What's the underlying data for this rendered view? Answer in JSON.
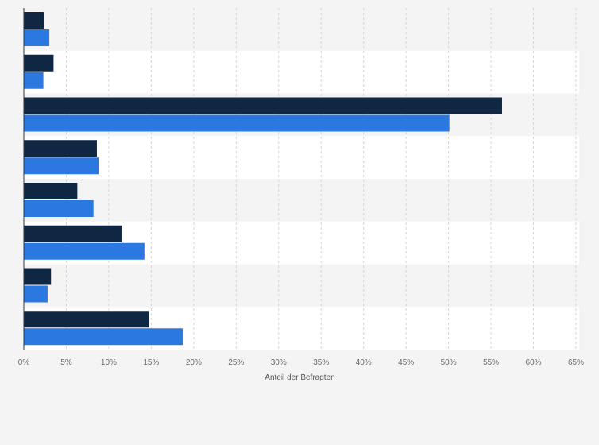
{
  "chart_data": {
    "type": "bar",
    "orientation": "horizontal",
    "categories": [
      "",
      "",
      "",
      "",
      "",
      "",
      "",
      ""
    ],
    "series": [
      {
        "values": [
          2.4,
          3.5,
          56.3,
          8.6,
          6.3,
          11.5,
          3.2,
          14.7
        ]
      },
      {
        "values": [
          3.0,
          2.3,
          50.1,
          8.8,
          8.2,
          14.2,
          2.8,
          18.7
        ]
      }
    ],
    "xlabel": "Anteil der Befragten",
    "ylabel": "",
    "xlim": [
      0,
      65
    ],
    "xticks": [
      0,
      5,
      10,
      15,
      20,
      25,
      30,
      35,
      40,
      45,
      50,
      55,
      60,
      65
    ],
    "tick_labels": [
      "0%",
      "5%",
      "10%",
      "15%",
      "20%",
      "25%",
      "30%",
      "35%",
      "40%",
      "45%",
      "50%",
      "55%",
      "60%",
      "65%"
    ],
    "grid": true
  },
  "colors": {
    "series_1": "#0f2742",
    "series_2": "#2b78e0",
    "band_light": "#ffffff",
    "band_dark": "#f4f4f4",
    "grid": "#d6d6d6",
    "axis": "#333333"
  }
}
